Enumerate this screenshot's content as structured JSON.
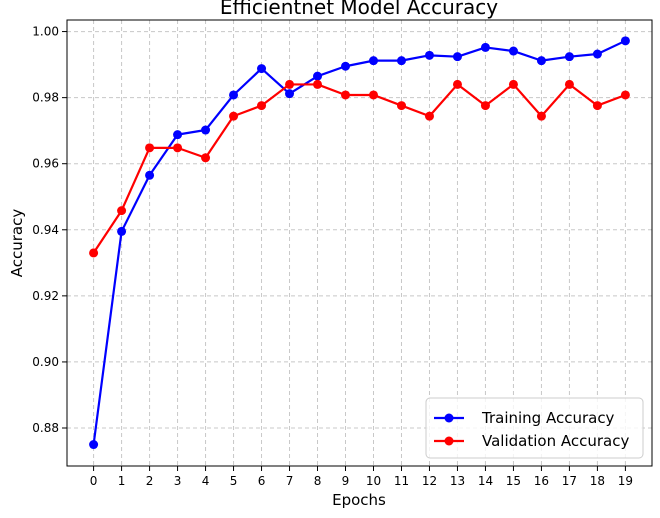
{
  "chart_data": {
    "type": "line",
    "title": "Efficientnet Model Accuracy",
    "xlabel": "Epochs",
    "ylabel": "Accuracy",
    "x": [
      0,
      1,
      2,
      3,
      4,
      5,
      6,
      7,
      8,
      9,
      10,
      11,
      12,
      13,
      14,
      15,
      16,
      17,
      18,
      19
    ],
    "xticks": [
      "0",
      "1",
      "2",
      "3",
      "4",
      "5",
      "6",
      "7",
      "8",
      "9",
      "10",
      "11",
      "12",
      "13",
      "14",
      "15",
      "16",
      "17",
      "18",
      "19"
    ],
    "yticks": [
      "0.88",
      "0.90",
      "0.92",
      "0.94",
      "0.96",
      "0.98",
      "1.00"
    ],
    "ylim": [
      0.8685,
      1.0035
    ],
    "xlim": [
      -0.95,
      19.95
    ],
    "grid": true,
    "legend_position": "lower-right",
    "series": [
      {
        "name": "Training Accuracy",
        "color": "#0000ff",
        "values": [
          0.875,
          0.9395,
          0.9565,
          0.9688,
          0.9702,
          0.9808,
          0.9888,
          0.9812,
          0.9865,
          0.9895,
          0.9912,
          0.9912,
          0.9928,
          0.9924,
          0.9952,
          0.9941,
          0.9912,
          0.9924,
          0.9932,
          0.9972
        ]
      },
      {
        "name": "Validation Accuracy",
        "color": "#ff0000",
        "values": [
          0.933,
          0.9458,
          0.9648,
          0.9648,
          0.9618,
          0.9744,
          0.9776,
          0.984,
          0.984,
          0.9808,
          0.9808,
          0.9776,
          0.9744,
          0.984,
          0.9776,
          0.984,
          0.9744,
          0.984,
          0.9776,
          0.9808
        ]
      }
    ]
  }
}
